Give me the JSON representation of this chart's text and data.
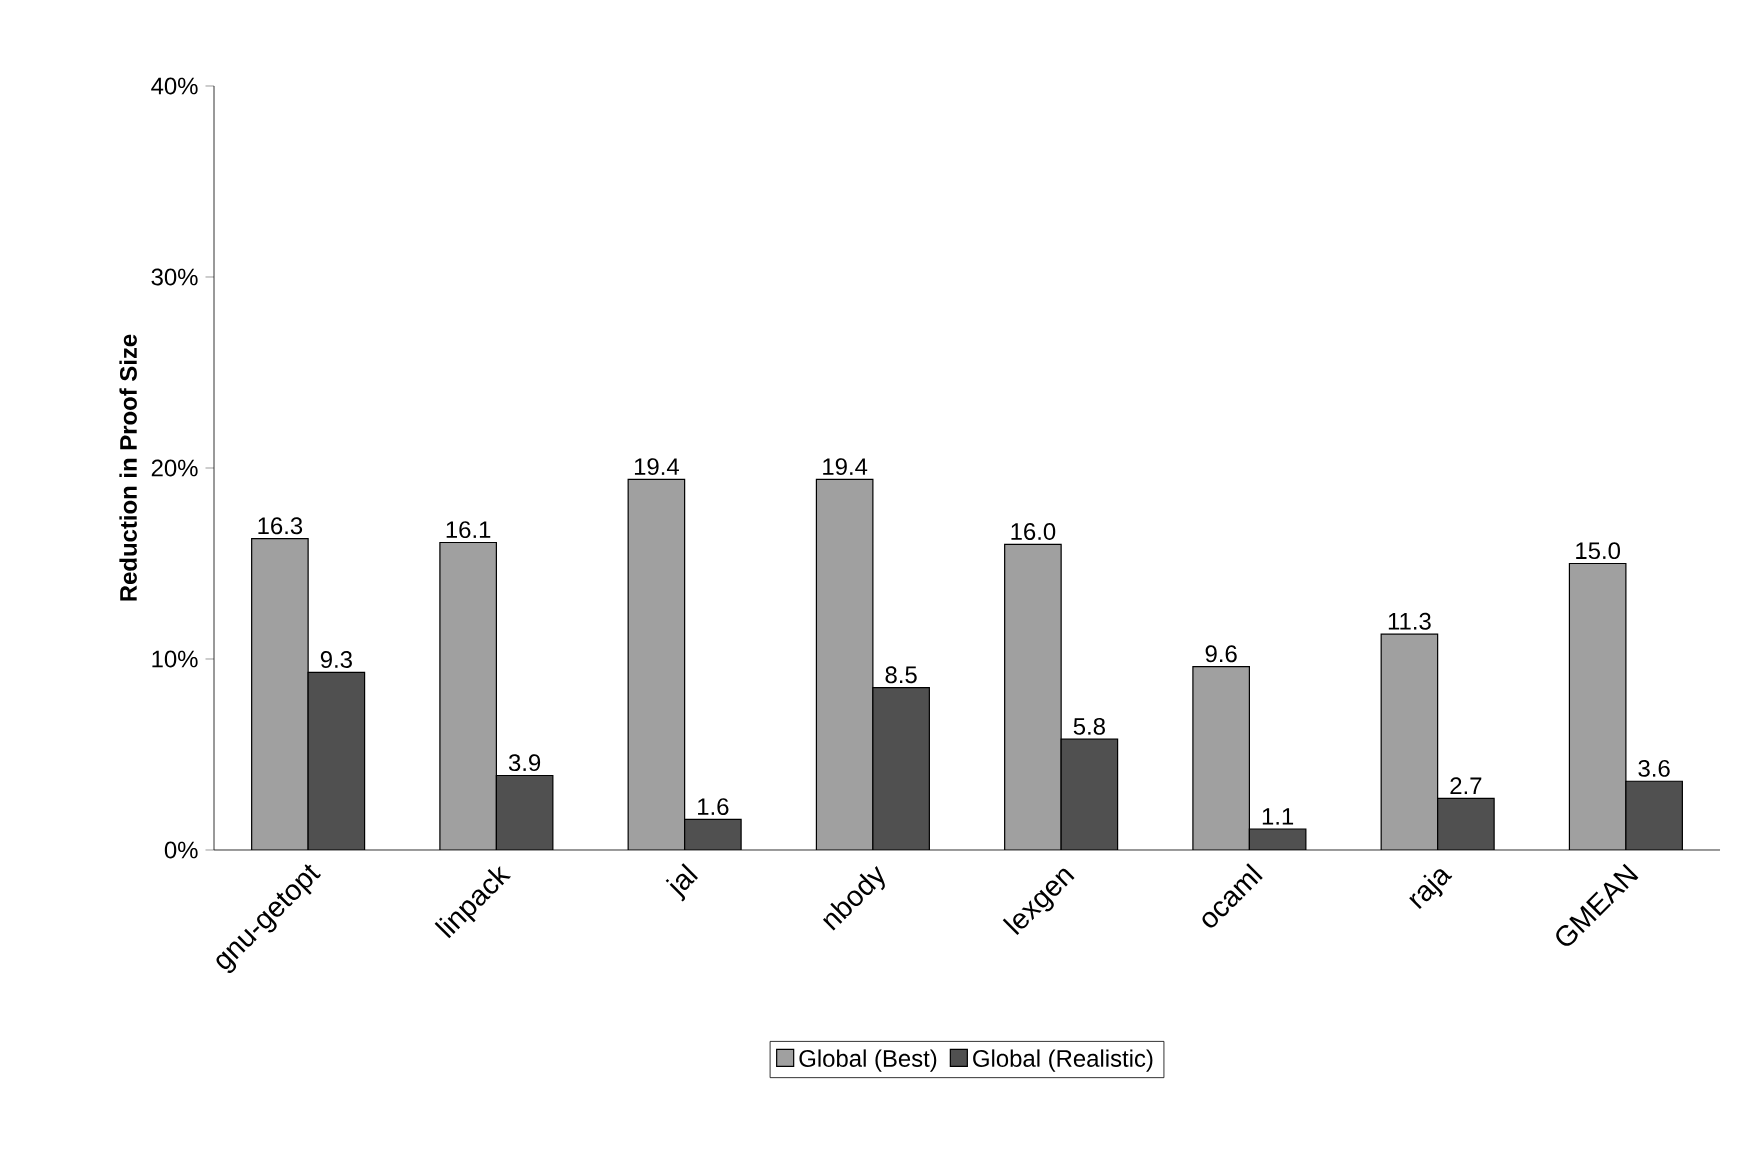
{
  "chart_data": {
    "type": "bar",
    "ylabel": "Reduction in Proof Size",
    "categories": [
      "gnu-getopt",
      "linpack",
      "jal",
      "nbody",
      "lexgen",
      "ocaml",
      "raja",
      "GMEAN"
    ],
    "series": [
      {
        "name": "Global (Best)",
        "color": "#a0a0a0",
        "values": [
          16.3,
          16.1,
          19.4,
          19.4,
          16.0,
          9.6,
          11.3,
          15.0
        ],
        "value_labels": [
          "16.3",
          "16.1",
          "19.4",
          "19.4",
          "16.0",
          "9.6",
          "11.3",
          "15.0"
        ]
      },
      {
        "name": "Global (Realistic)",
        "color": "#505050",
        "values": [
          9.3,
          3.9,
          1.6,
          8.5,
          5.8,
          1.1,
          2.7,
          3.6
        ],
        "value_labels": [
          "9.3",
          "3.9",
          "1.6",
          "8.5",
          "5.8",
          "1.1",
          "2.7",
          "3.6"
        ]
      }
    ],
    "ylim": [
      0,
      40
    ],
    "yticks": [
      {
        "value": 0,
        "label": "0%"
      },
      {
        "value": 10,
        "label": "10%"
      },
      {
        "value": 20,
        "label": "20%"
      },
      {
        "value": 30,
        "label": "30%"
      },
      {
        "value": 40,
        "label": "40%"
      }
    ],
    "legend": "bottom",
    "grid": false
  }
}
